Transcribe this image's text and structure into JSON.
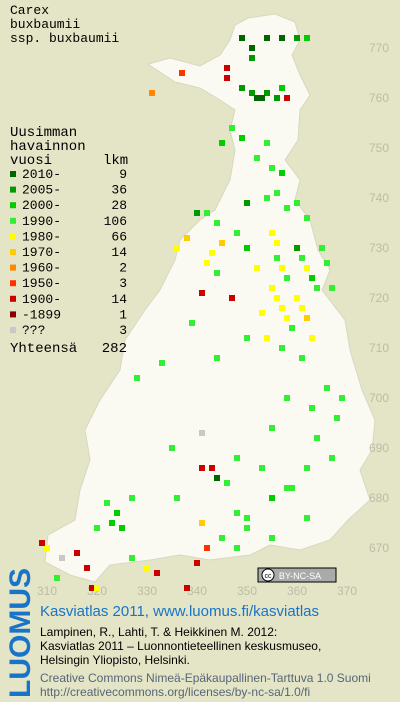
{
  "header": {
    "title_lines": [
      "Carex",
      "buxbaumii",
      "ssp. buxbaumii"
    ]
  },
  "legend": {
    "heading_lines": [
      "Uusimman",
      "havainnon",
      "vuosi"
    ],
    "count_heading": "lkm",
    "rows": [
      {
        "label": "2010-",
        "count": 9,
        "color": "#006600"
      },
      {
        "label": "2005-",
        "count": 36,
        "color": "#009900"
      },
      {
        "label": "2000-",
        "count": 28,
        "color": "#00cc00"
      },
      {
        "label": "1990-",
        "count": 106,
        "color": "#33ee33"
      },
      {
        "label": "1980-",
        "count": 66,
        "color": "#ffff00"
      },
      {
        "label": "1970-",
        "count": 14,
        "color": "#ffcc00"
      },
      {
        "label": "1960-",
        "count": 2,
        "color": "#ff8800"
      },
      {
        "label": "1950-",
        "count": 3,
        "color": "#ff3300"
      },
      {
        "label": "1900-",
        "count": 14,
        "color": "#cc0000"
      },
      {
        "label": "-1899",
        "count": 1,
        "color": "#880000"
      },
      {
        "label": "???",
        "count": 3,
        "color": "#c8c8c8"
      }
    ],
    "total_label": "Yhteensä",
    "total": 282
  },
  "map": {
    "easting_ticks": [
      310,
      320,
      330,
      340,
      350,
      360,
      370
    ],
    "northing_ticks": [
      770,
      760,
      750,
      740,
      730,
      720,
      710,
      700,
      690,
      680,
      670
    ],
    "squares": [
      [
        349,
        772,
        0
      ],
      [
        351,
        770,
        0
      ],
      [
        354,
        772,
        0
      ],
      [
        357,
        772,
        0
      ],
      [
        360,
        772,
        1
      ],
      [
        362,
        772,
        2
      ],
      [
        351,
        768,
        1
      ],
      [
        346,
        766,
        8
      ],
      [
        337,
        765,
        7
      ],
      [
        346,
        764,
        8
      ],
      [
        331,
        761,
        6
      ],
      [
        349,
        762,
        1
      ],
      [
        351,
        761,
        1
      ],
      [
        352,
        760,
        0
      ],
      [
        354,
        761,
        1
      ],
      [
        357,
        762,
        2
      ],
      [
        358,
        760,
        8
      ],
      [
        353,
        760,
        0
      ],
      [
        356,
        760,
        1
      ],
      [
        347,
        754,
        3
      ],
      [
        349,
        752,
        2
      ],
      [
        345,
        751,
        2
      ],
      [
        354,
        751,
        3
      ],
      [
        355,
        746,
        3
      ],
      [
        357,
        745,
        2
      ],
      [
        352,
        748,
        3
      ],
      [
        340,
        737,
        1
      ],
      [
        342,
        737,
        3
      ],
      [
        344,
        735,
        3
      ],
      [
        350,
        739,
        1
      ],
      [
        354,
        740,
        3
      ],
      [
        356,
        741,
        3
      ],
      [
        358,
        738,
        3
      ],
      [
        360,
        739,
        3
      ],
      [
        362,
        736,
        3
      ],
      [
        355,
        733,
        4
      ],
      [
        356,
        731,
        4
      ],
      [
        356,
        728,
        3
      ],
      [
        357,
        726,
        4
      ],
      [
        358,
        724,
        3
      ],
      [
        355,
        722,
        4
      ],
      [
        356,
        720,
        4
      ],
      [
        357,
        718,
        4
      ],
      [
        358,
        716,
        4
      ],
      [
        359,
        714,
        3
      ],
      [
        360,
        730,
        1
      ],
      [
        361,
        728,
        3
      ],
      [
        362,
        726,
        4
      ],
      [
        363,
        724,
        2
      ],
      [
        364,
        722,
        3
      ],
      [
        360,
        720,
        4
      ],
      [
        361,
        718,
        4
      ],
      [
        362,
        716,
        5
      ],
      [
        365,
        730,
        3
      ],
      [
        366,
        727,
        3
      ],
      [
        367,
        722,
        3
      ],
      [
        363,
        712,
        4
      ],
      [
        354,
        712,
        4
      ],
      [
        353,
        717,
        4
      ],
      [
        357,
        710,
        3
      ],
      [
        352,
        726,
        4
      ],
      [
        350,
        730,
        2
      ],
      [
        348,
        733,
        3
      ],
      [
        345,
        731,
        5
      ],
      [
        343,
        729,
        4
      ],
      [
        342,
        727,
        4
      ],
      [
        344,
        725,
        3
      ],
      [
        336,
        730,
        4
      ],
      [
        338,
        732,
        5
      ],
      [
        347,
        720,
        8
      ],
      [
        341,
        721,
        8
      ],
      [
        339,
        715,
        3
      ],
      [
        344,
        708,
        3
      ],
      [
        350,
        712,
        3
      ],
      [
        333,
        707,
        3
      ],
      [
        328,
        704,
        3
      ],
      [
        361,
        708,
        3
      ],
      [
        366,
        702,
        3
      ],
      [
        369,
        700,
        3
      ],
      [
        363,
        698,
        3
      ],
      [
        358,
        700,
        3
      ],
      [
        355,
        694,
        3
      ],
      [
        368,
        696,
        3
      ],
      [
        364,
        692,
        3
      ],
      [
        348,
        688,
        3
      ],
      [
        341,
        693,
        10
      ],
      [
        335,
        690,
        3
      ],
      [
        353,
        686,
        3
      ],
      [
        362,
        686,
        3
      ],
      [
        359,
        682,
        3
      ],
      [
        367,
        688,
        3
      ],
      [
        343,
        686,
        8
      ],
      [
        341,
        686,
        8
      ],
      [
        344,
        684,
        0
      ],
      [
        346,
        683,
        3
      ],
      [
        336,
        680,
        3
      ],
      [
        327,
        680,
        3
      ],
      [
        322,
        679,
        3
      ],
      [
        324,
        677,
        2
      ],
      [
        323,
        675,
        2
      ],
      [
        325,
        674,
        2
      ],
      [
        320,
        674,
        3
      ],
      [
        341,
        675,
        5
      ],
      [
        345,
        672,
        3
      ],
      [
        348,
        677,
        3
      ],
      [
        350,
        676,
        3
      ],
      [
        355,
        680,
        2
      ],
      [
        358,
        682,
        3
      ],
      [
        362,
        676,
        3
      ],
      [
        355,
        672,
        3
      ],
      [
        348,
        670,
        3
      ],
      [
        350,
        674,
        3
      ],
      [
        342,
        670,
        7
      ],
      [
        332,
        665,
        8
      ],
      [
        330,
        666,
        4
      ],
      [
        327,
        668,
        3
      ],
      [
        340,
        667,
        8
      ],
      [
        310,
        670,
        4
      ],
      [
        309,
        671,
        8
      ],
      [
        313,
        668,
        10
      ],
      [
        316,
        669,
        8
      ],
      [
        318,
        666,
        8
      ],
      [
        312,
        664,
        3
      ],
      [
        319,
        662,
        8
      ],
      [
        320,
        662,
        4
      ],
      [
        338,
        662,
        8
      ]
    ]
  },
  "cc_badge": {
    "symbol": "cc",
    "text": "BY-NC-SA"
  },
  "footer": {
    "logo": "LUOMUS",
    "headline": "Kasviatlas 2011, www.luomus.fi/kasviatlas",
    "citation_lines": [
      "Lampinen, R., Lahti, T. & Heikkinen M. 2012:",
      "Kasviatlas 2011 – Luonnontieteellinen keskusmuseo,",
      "Helsingin Yliopisto, Helsinki."
    ],
    "license_lines": [
      "Creative Commons Nimeä-Epäkaupallinen-Tarttuva 1.0 Suomi",
      "http://creativecommons.org/licenses/by-nc-sa/1.0/fi"
    ]
  }
}
